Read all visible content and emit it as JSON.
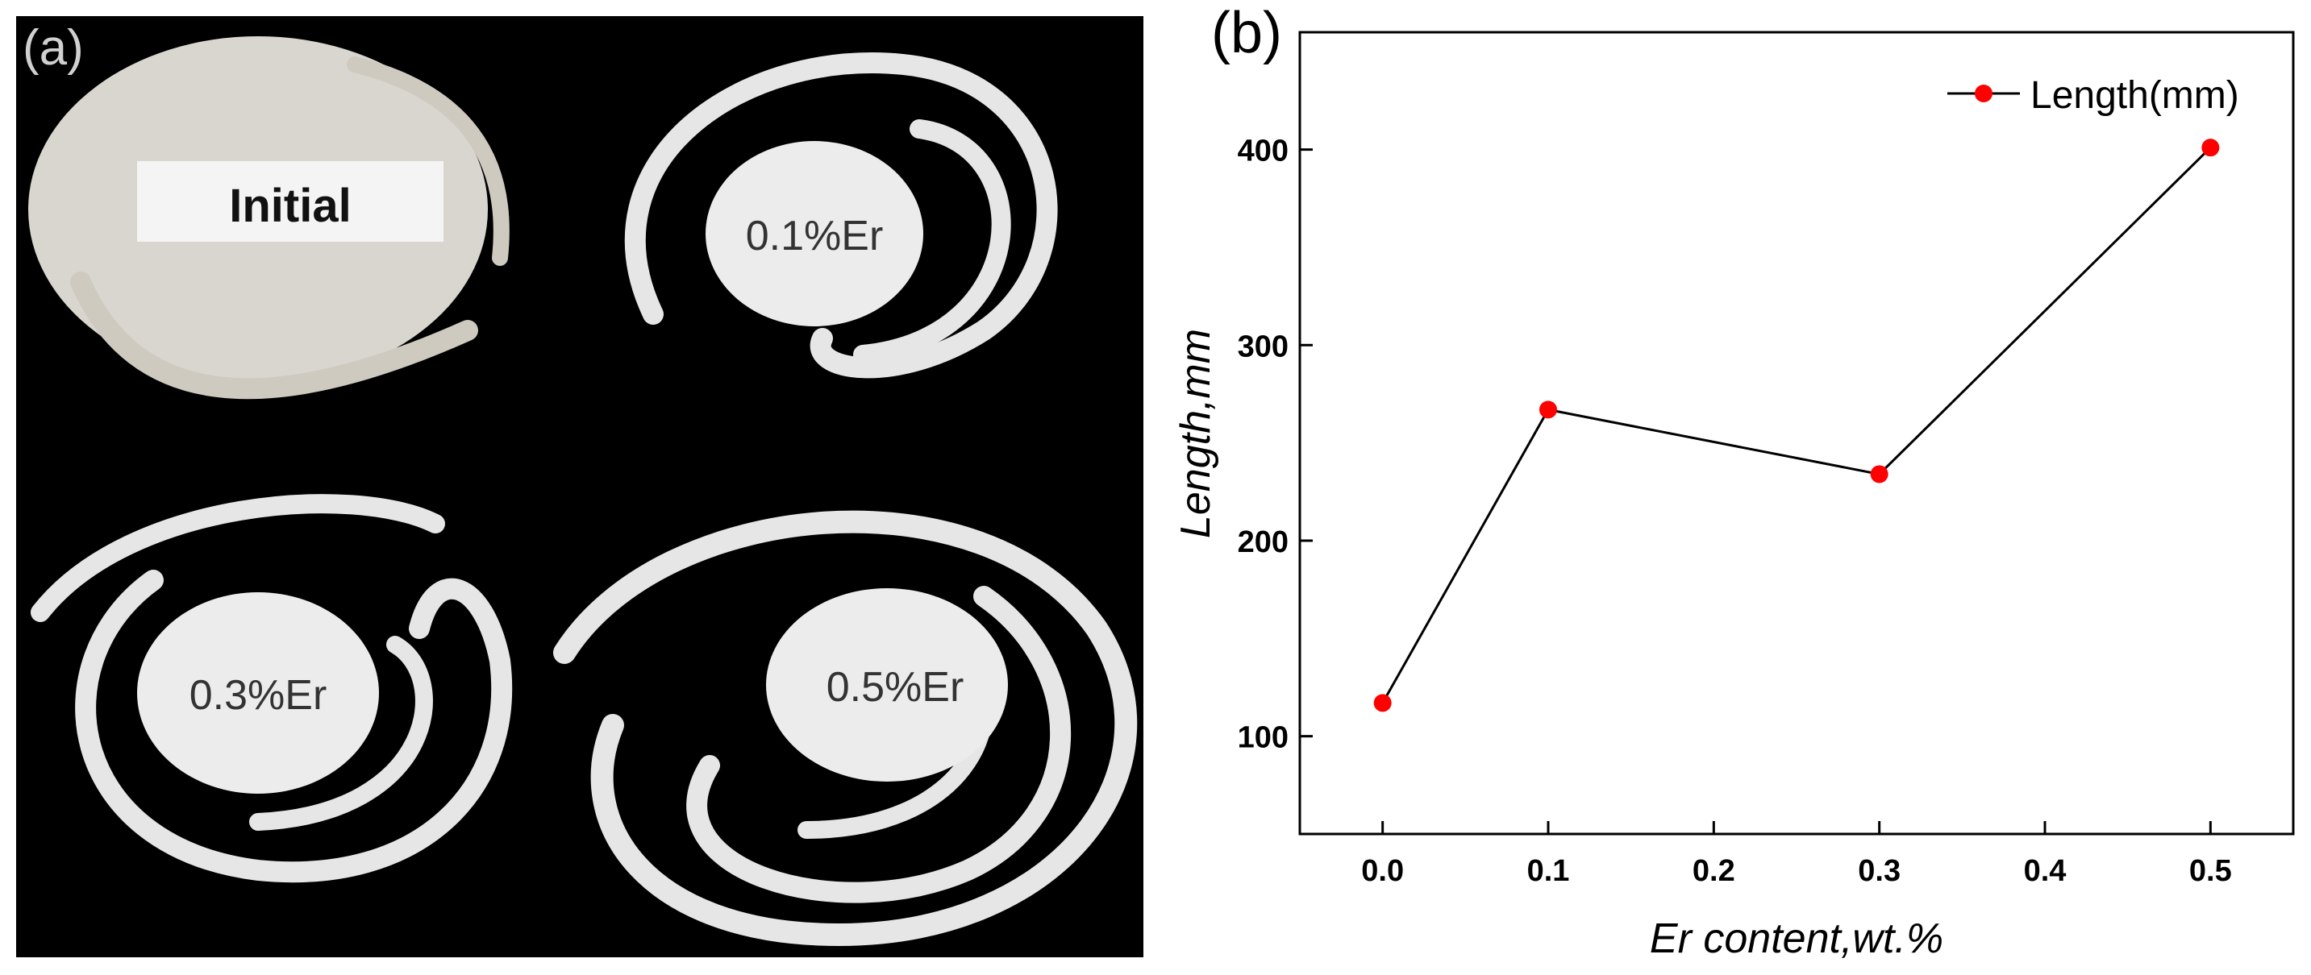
{
  "panel_a": {
    "label": "(a)",
    "samples": [
      {
        "name": "initial",
        "label": "Initial"
      },
      {
        "name": "0.1Er",
        "label": "0.1%Er"
      },
      {
        "name": "0.3Er",
        "label": "0.3%Er"
      },
      {
        "name": "0.5Er",
        "label": "0.5%Er"
      }
    ]
  },
  "colors": {
    "marker": "#ff0000",
    "line": "#000000",
    "axis": "#000000",
    "sample": "#e8e8e8",
    "photo_bg": "#000000"
  },
  "chart_data": {
    "type": "line",
    "panel_label": "(b)",
    "title": "",
    "x": [
      0.0,
      0.1,
      0.3,
      0.5
    ],
    "series": [
      {
        "name": "Length(mm)",
        "values": [
          117,
          267,
          234,
          401
        ]
      }
    ],
    "xlabel": "Er content,wt.%",
    "ylabel": "Length,mm",
    "xlim": [
      -0.05,
      0.55
    ],
    "ylim": [
      50,
      460
    ],
    "xticks": [
      0.0,
      0.1,
      0.2,
      0.3,
      0.4,
      0.5
    ],
    "xtick_labels": [
      "0.0",
      "0.1",
      "0.2",
      "0.3",
      "0.4",
      "0.5"
    ],
    "yticks": [
      100,
      200,
      300,
      400
    ],
    "ytick_labels": [
      "100",
      "200",
      "300",
      "400"
    ],
    "grid": false,
    "legend": "top-right"
  }
}
